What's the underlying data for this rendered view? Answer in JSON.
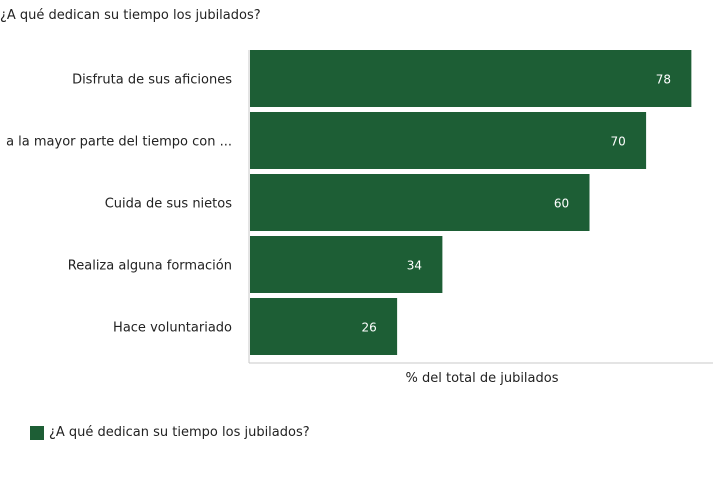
{
  "title": "¿A qué dedican su tiempo los jubilados?",
  "chart_data": {
    "type": "bar",
    "orientation": "horizontal",
    "title": "¿A qué dedican su tiempo los jubilados?",
    "categories": [
      "Disfruta de sus aficiones",
      "Pasa la mayor parte del tiempo con ...",
      "Cuida de sus nietos",
      "Realiza alguna formación",
      "Hace voluntariado"
    ],
    "visible_category_labels": [
      "Disfruta de sus aficiones",
      "a la mayor parte del tiempo con ...",
      "Cuida de sus nietos",
      "Realiza alguna formación",
      "Hace voluntariado"
    ],
    "series": [
      {
        "name": "¿A qué dedican su tiempo los jubilados?",
        "values": [
          78,
          70,
          60,
          34,
          26
        ],
        "color": "#1d5e35"
      }
    ],
    "xlabel": "% del total de jubilados",
    "ylabel": "",
    "xlim": [
      0,
      82
    ],
    "grid": false,
    "data_labels": true,
    "legend_position": "bottom-left"
  },
  "legend": {
    "label": "¿A qué dedican su tiempo los jubilados?"
  },
  "colors": {
    "bar": "#1d5e35",
    "axis": "#c8c8c8",
    "data_label": "#ffffff"
  }
}
